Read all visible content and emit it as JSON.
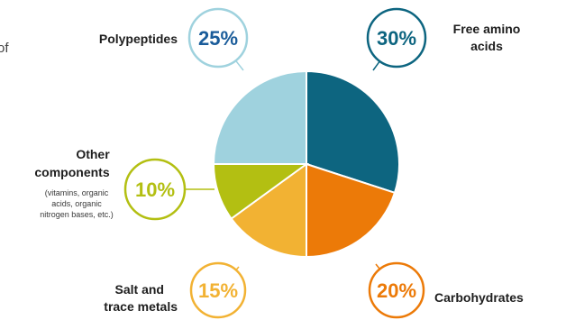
{
  "chart_data": {
    "type": "pie",
    "slices": [
      {
        "label": "Free amino acids",
        "value": 30,
        "pct_label": "30%",
        "color": "#0d6580"
      },
      {
        "label": "Carbohydrates",
        "value": 20,
        "pct_label": "20%",
        "color": "#ec7a08"
      },
      {
        "label": "Salt and trace metals",
        "value": 15,
        "pct_label": "15%",
        "color": "#f2b233"
      },
      {
        "label": "Other components",
        "value": 10,
        "pct_label": "10%",
        "color": "#b3bf12",
        "note": "(vitamins, organic acids, organic nitrogen bases, etc.)"
      },
      {
        "label": "Polypeptides",
        "value": 25,
        "pct_label": "25%",
        "color": "#9fd2de",
        "pct_color": "#1a5c9a"
      }
    ],
    "title": "",
    "legend": "none",
    "label_text": {
      "free_amino_1": "Free amino",
      "free_amino_2": "acids",
      "carbohydrates": "Carbohydrates",
      "salt_1": "Salt and",
      "salt_2": "trace metals",
      "other_1": "Other",
      "other_2": "components",
      "note_1": "(vitamins, organic",
      "note_2": "acids, organic",
      "note_3": "nitrogen bases, etc.)",
      "polypeptides": "Polypeptides"
    },
    "partial_text": "of"
  }
}
